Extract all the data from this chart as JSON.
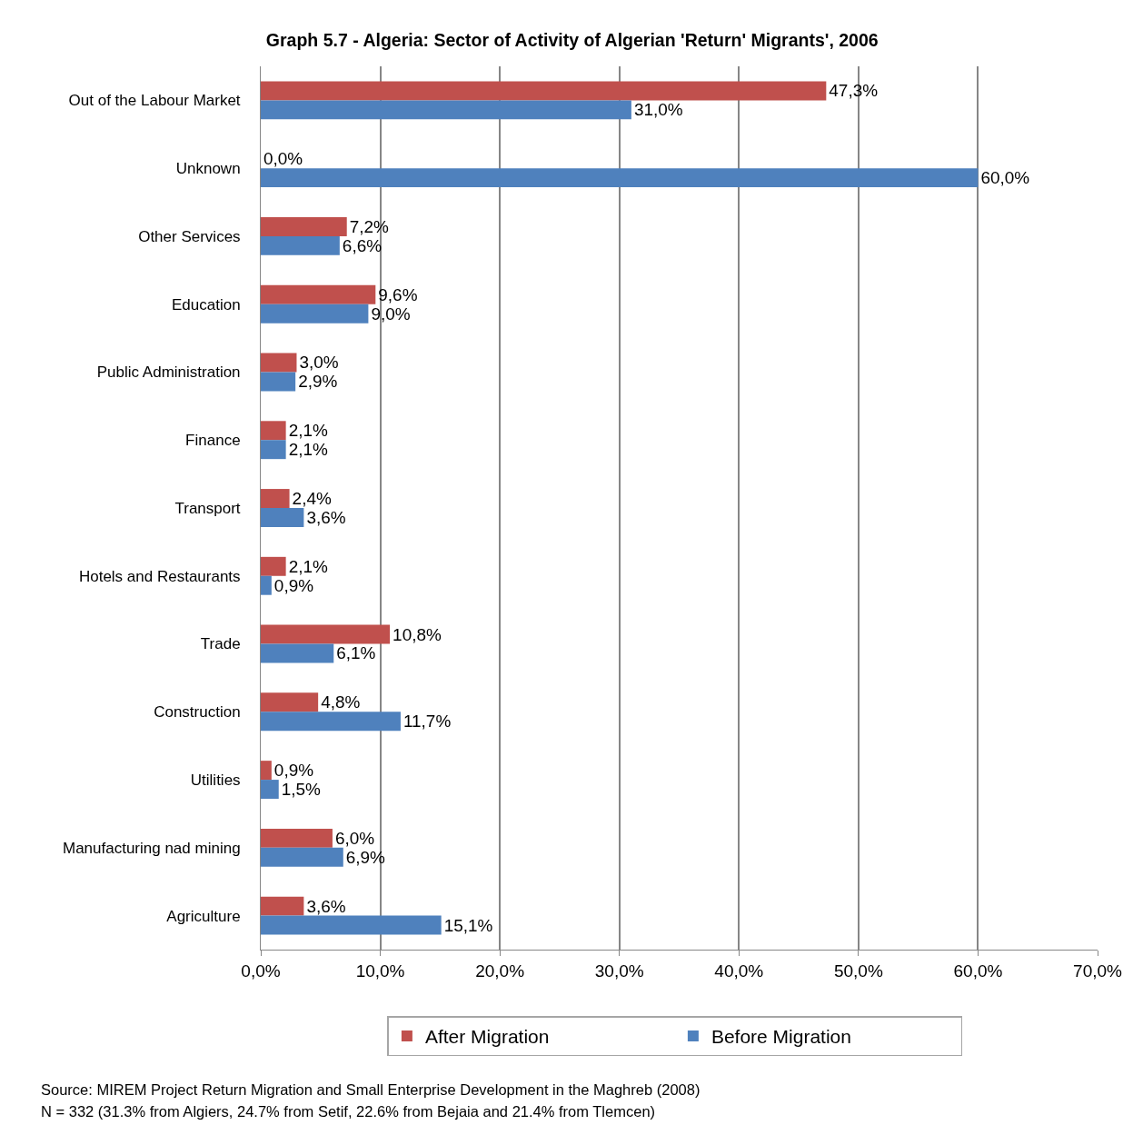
{
  "chart_data": {
    "type": "bar",
    "orientation": "horizontal",
    "title": "Graph 5.7 - Algeria: Sector of Activity of Algerian 'Return' Migrants', 2006",
    "categories": [
      "Out of the Labour Market",
      "Unknown",
      "Other Services",
      "Education",
      "Public Administration",
      "Finance",
      "Transport",
      "Hotels and Restaurants",
      "Trade",
      "Construction",
      "Utilities",
      "Manufacturing nad mining",
      "Agriculture"
    ],
    "series": [
      {
        "name": "After Migration",
        "color": "#c0504d",
        "values": [
          47.3,
          0,
          7.2,
          9.6,
          3.0,
          2.1,
          2.4,
          2.1,
          10.8,
          4.8,
          0.9,
          6.0,
          3.6
        ],
        "value_labels": [
          "47,3%",
          "0,0%",
          "7,2%",
          "9,6%",
          "3,0%",
          "2,1%",
          "2,4%",
          "2,1%",
          "10,8%",
          "4,8%",
          "0,9%",
          "6,0%",
          "3,6%"
        ]
      },
      {
        "name": "Before Migration",
        "color": "#4f81bd",
        "values": [
          31.0,
          60.0,
          6.6,
          9.0,
          2.9,
          2.1,
          3.6,
          0.9,
          6.1,
          11.7,
          1.5,
          6.9,
          15.1
        ],
        "value_labels": [
          "31,0%",
          "60,0%",
          "6,6%",
          "9,0%",
          "2,9%",
          "2,1%",
          "3,6%",
          "0,9%",
          "6,1%",
          "11,7%",
          "1,5%",
          "6,9%",
          "15,1%"
        ]
      }
    ],
    "xlim": [
      0,
      70
    ],
    "xticks": [
      {
        "value": 0,
        "label": "0,0%"
      },
      {
        "value": 10,
        "label": "10,0%"
      },
      {
        "value": 20,
        "label": "20,0%"
      },
      {
        "value": 30,
        "label": "30,0%"
      },
      {
        "value": 40,
        "label": "40,0%"
      },
      {
        "value": 50,
        "label": "50,0%"
      },
      {
        "value": 60,
        "label": "60,0%"
      },
      {
        "value": 70,
        "label": "70,0%"
      }
    ],
    "grid": "x",
    "legend": "bottom",
    "annotations": [
      "Source: MIREM Project Return Migration and Small Enterprise Development in the Maghreb (2008)",
      "N = 332 (31.3% from Algiers, 24.7% from Setif, 22.6% from Bejaia and 21.4% from Tlemcen)"
    ]
  }
}
